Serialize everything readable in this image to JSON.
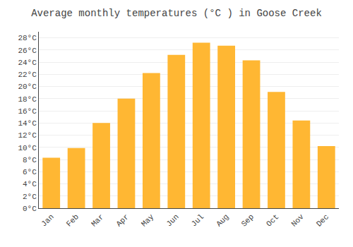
{
  "chart_data": {
    "type": "bar",
    "title": "Average monthly temperatures (°C ) in Goose Creek",
    "categories": [
      "Jan",
      "Feb",
      "Mar",
      "Apr",
      "May",
      "Jun",
      "Jul",
      "Aug",
      "Sep",
      "Oct",
      "Nov",
      "Dec"
    ],
    "values": [
      8.3,
      9.9,
      14.0,
      18.0,
      22.2,
      25.2,
      27.2,
      26.7,
      24.3,
      19.1,
      14.4,
      10.2
    ],
    "color": "#FFB733",
    "ylim": [
      0,
      29
    ],
    "yticks": [
      {
        "value": 0,
        "label": "0°C"
      },
      {
        "value": 2,
        "label": "2°C"
      },
      {
        "value": 4,
        "label": "4°C"
      },
      {
        "value": 6,
        "label": "6°C"
      },
      {
        "value": 8,
        "label": "8°C"
      },
      {
        "value": 10,
        "label": "10°C"
      },
      {
        "value": 12,
        "label": "12°C"
      },
      {
        "value": 14,
        "label": "14°C"
      },
      {
        "value": 16,
        "label": "16°C"
      },
      {
        "value": 18,
        "label": "18°C"
      },
      {
        "value": 20,
        "label": "20°C"
      },
      {
        "value": 22,
        "label": "22°C"
      },
      {
        "value": 24,
        "label": "24°C"
      },
      {
        "value": 26,
        "label": "26°C"
      },
      {
        "value": 28,
        "label": "28°C"
      }
    ],
    "grid": true
  }
}
